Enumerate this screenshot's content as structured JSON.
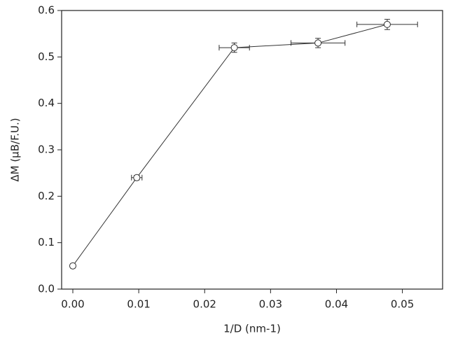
{
  "chart_data": {
    "type": "line",
    "x_label": "1/D (nm-1)",
    "y_label": "ΔM (μB/F.U.)",
    "x": [
      0.0,
      0.0097,
      0.0245,
      0.0372,
      0.0477
    ],
    "series": [
      {
        "color": "#333333",
        "values": [
          0.05,
          0.24,
          0.52,
          0.53,
          0.57
        ],
        "x_err": [
          0.0003,
          0.0008,
          0.0023,
          0.0041,
          0.0046
        ],
        "y_err": [
          0.004,
          0.005,
          0.01,
          0.01,
          0.011
        ]
      }
    ],
    "xlim": [
      -0.0017,
      0.0561
    ],
    "ylim": [
      0,
      0.6
    ],
    "xticks": [
      {
        "value": 0,
        "label": "0.00"
      },
      {
        "value": 0.01,
        "label": "0.01"
      },
      {
        "value": 0.02,
        "label": "0.02"
      },
      {
        "value": 0.03,
        "label": "0.03"
      },
      {
        "value": 0.04,
        "label": "0.04"
      },
      {
        "value": 0.05,
        "label": "0.05"
      }
    ],
    "yticks": [
      {
        "value": 0,
        "label": "0.0"
      },
      {
        "value": 0.1,
        "label": "0.1"
      },
      {
        "value": 0.2,
        "label": "0.2"
      },
      {
        "value": 0.3,
        "label": "0.3"
      },
      {
        "value": 0.4,
        "label": "0.4"
      },
      {
        "value": 0.5,
        "label": "0.5"
      },
      {
        "value": 0.6,
        "label": "0.6"
      }
    ]
  }
}
